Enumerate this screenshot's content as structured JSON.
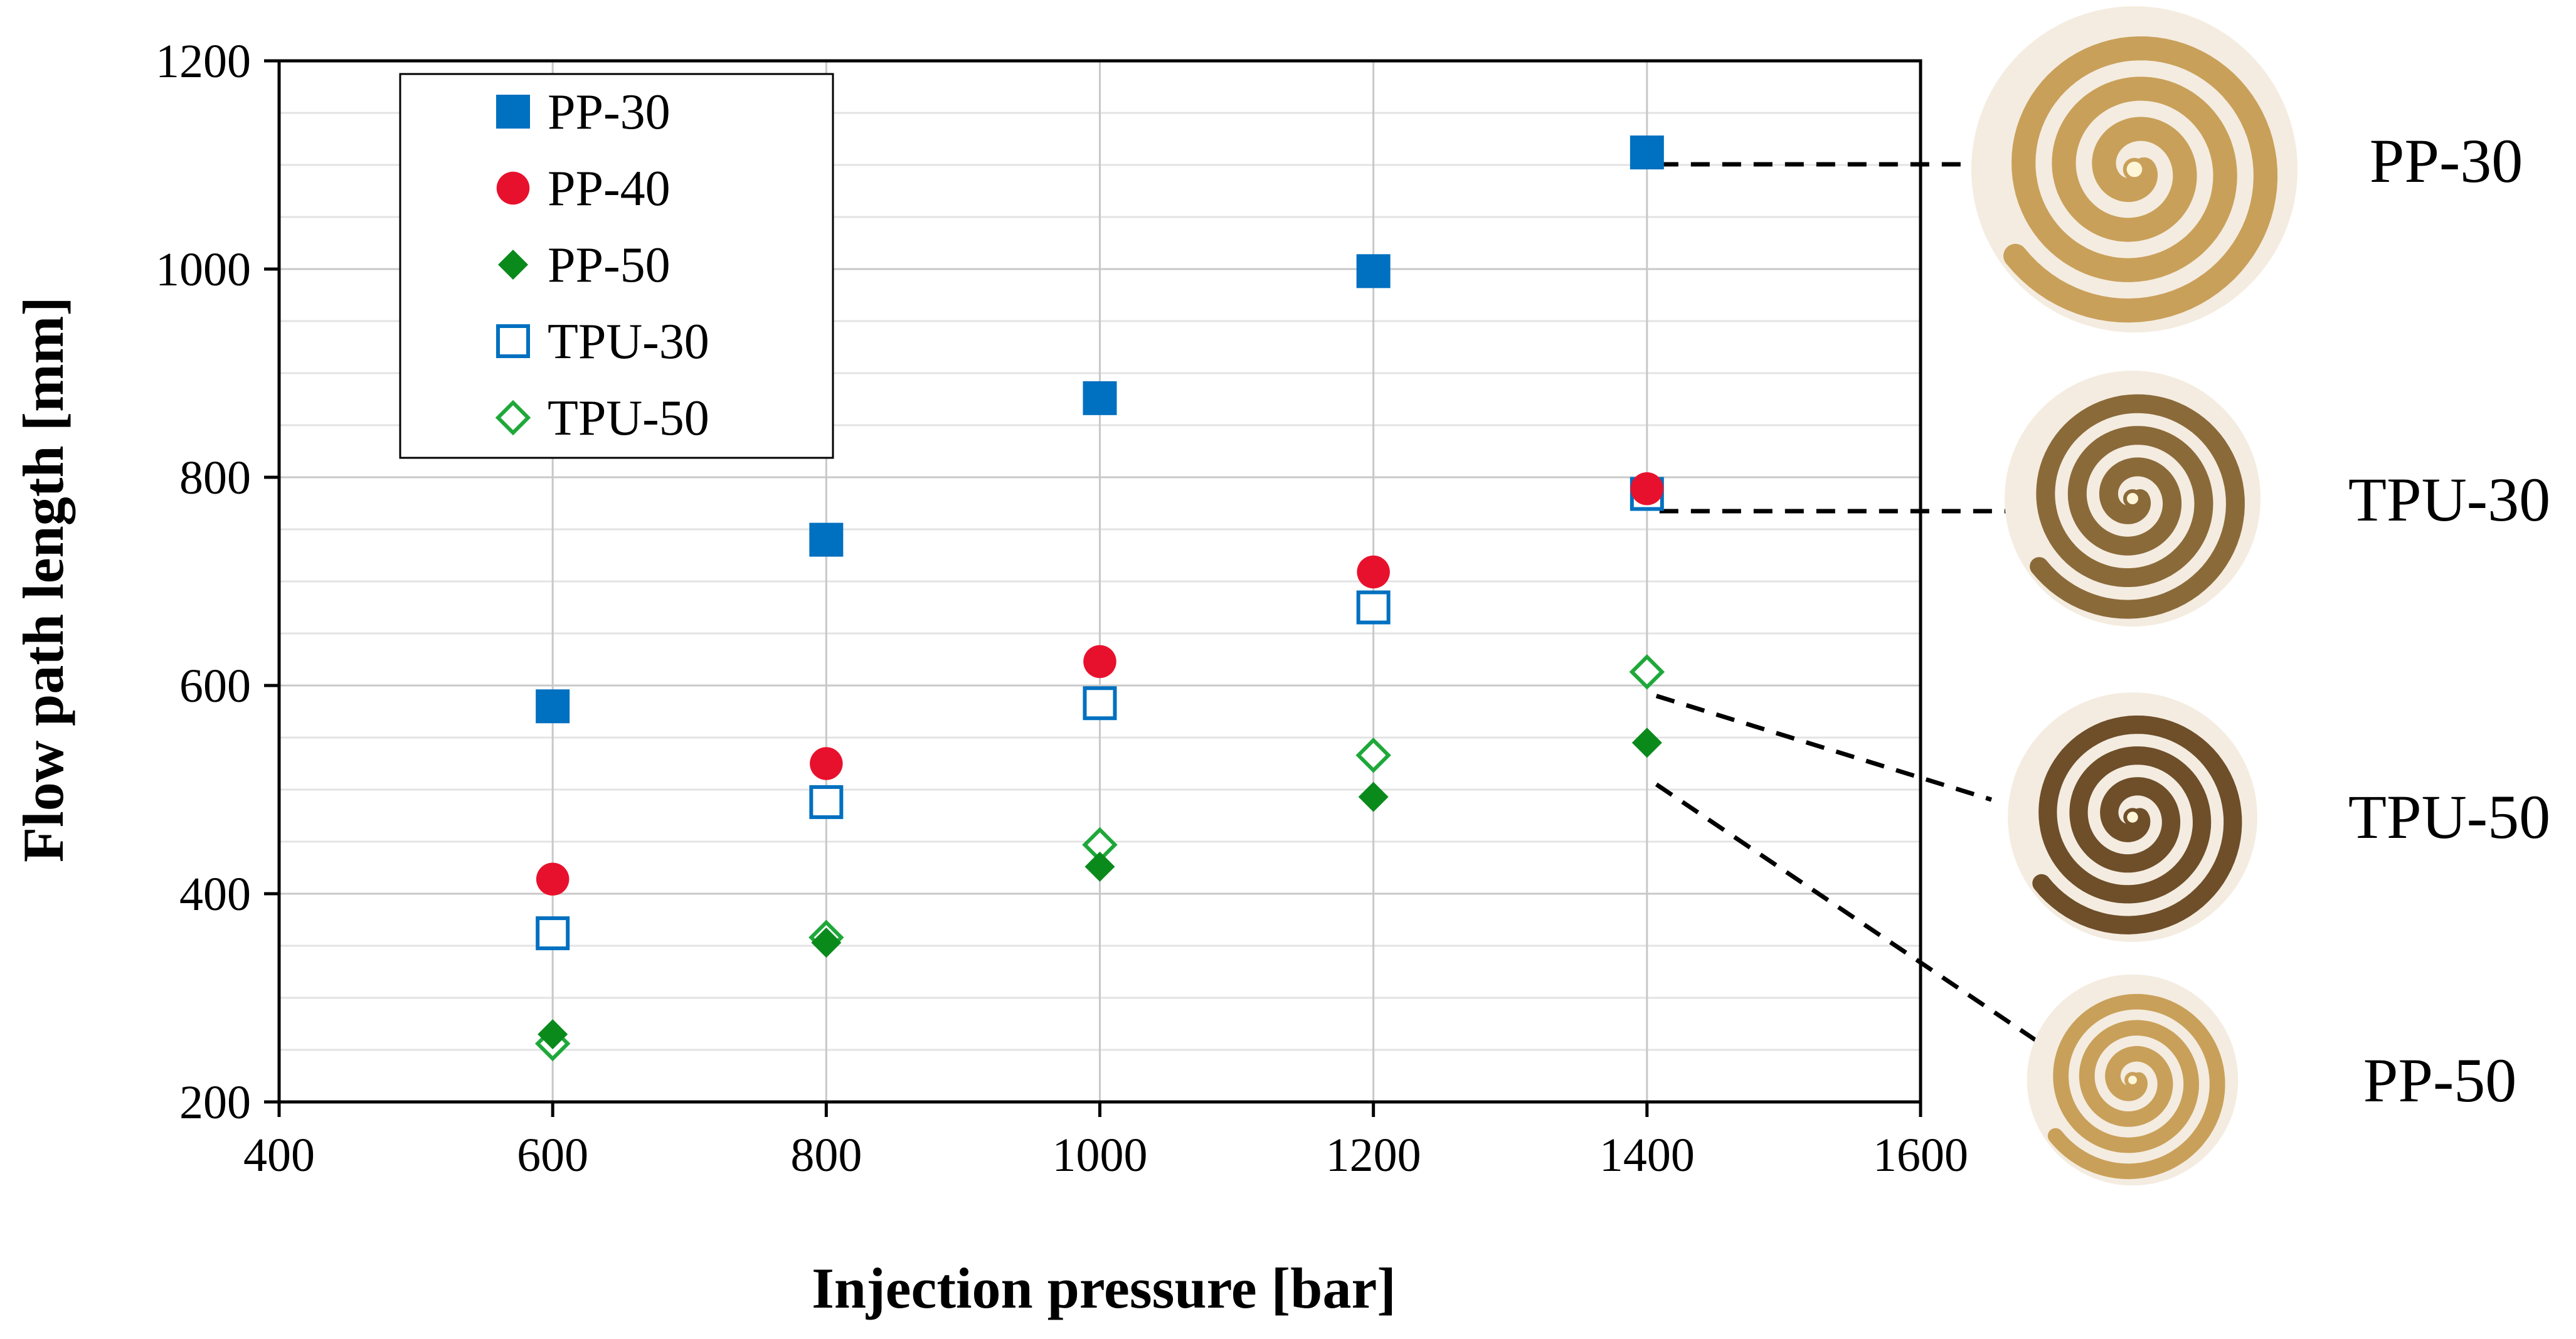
{
  "chart_data": {
    "type": "scatter",
    "title": "",
    "xlabel": "Injection pressure [bar]",
    "ylabel": "Flow path length [mm]",
    "xlim": [
      400,
      1600
    ],
    "ylim": [
      200,
      1200
    ],
    "xticks": [
      400,
      600,
      800,
      1000,
      1200,
      1400,
      1600
    ],
    "yticks": [
      200,
      400,
      600,
      800,
      1000,
      1200
    ],
    "grid": true,
    "legend_position": "top-left",
    "series": [
      {
        "name": "PP-30",
        "marker": "square-filled",
        "color": "#0070C0",
        "x": [
          600,
          800,
          1000,
          1200,
          1400
        ],
        "y": [
          580,
          740,
          876,
          998,
          1112
        ]
      },
      {
        "name": "PP-40",
        "marker": "circle-filled",
        "color": "#E8112D",
        "x": [
          600,
          800,
          1000,
          1200,
          1400
        ],
        "y": [
          414,
          525,
          623,
          709,
          789
        ]
      },
      {
        "name": "PP-50",
        "marker": "diamond-filled",
        "color": "#0B8A1C",
        "x": [
          600,
          800,
          1000,
          1200,
          1400
        ],
        "y": [
          265,
          353,
          426,
          493,
          545
        ]
      },
      {
        "name": "TPU-30",
        "marker": "square-open",
        "color": "#0070C0",
        "x": [
          600,
          800,
          1000,
          1200,
          1400
        ],
        "y": [
          362,
          488,
          583,
          675,
          784
        ]
      },
      {
        "name": "TPU-50",
        "marker": "diamond-open",
        "color": "#1FA83A",
        "x": [
          600,
          800,
          1000,
          1200,
          1400
        ],
        "y": [
          256,
          358,
          447,
          533,
          613
        ]
      }
    ],
    "annotations": [
      {
        "label": "PP-30",
        "points_to": {
          "x": 1400,
          "y": 1112
        },
        "spiral_color": "#C9A05A"
      },
      {
        "label": "TPU-30",
        "points_to": {
          "x": 1400,
          "y": 784
        },
        "spiral_color": "#8B6A3A"
      },
      {
        "label": "TPU-50",
        "points_to": {
          "x": 1400,
          "y": 613
        },
        "spiral_color": "#6E4F2A"
      },
      {
        "label": "PP-50",
        "points_to": {
          "x": 1400,
          "y": 545
        },
        "spiral_color": "#C9A05A"
      }
    ]
  }
}
